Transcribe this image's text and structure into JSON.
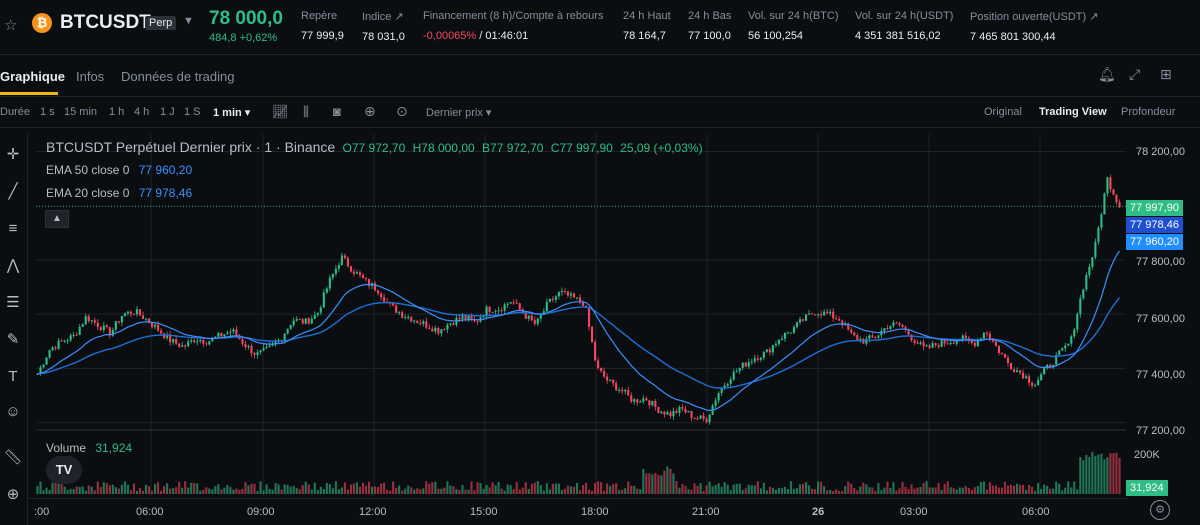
{
  "ticker": {
    "symbol": "BTCUSDT",
    "badge": "Perp",
    "coin_letter": "₿",
    "price": "78 000,0",
    "change": "484,8 +0,62%",
    "stats": [
      {
        "label": "Repère",
        "value": "77 999,9"
      },
      {
        "label": "Indice ↗",
        "value": "78 031,0"
      },
      {
        "label": "Financement (8 h)/Compte à rebours",
        "value_neg": "-0,00065%",
        "value_rest": " / 01:46:01"
      },
      {
        "label": "24 h Haut",
        "value": "78 164,7"
      },
      {
        "label": "24 h Bas",
        "value": "77 100,0"
      },
      {
        "label": "Vol. sur 24 h(BTC)",
        "value": "56 100,254"
      },
      {
        "label": "Vol. sur 24 h(USDT)",
        "value": "4 351 381 516,02"
      },
      {
        "label": "Position ouverte(USDT) ↗",
        "value": "7 465 801 300,44"
      }
    ]
  },
  "tabs": [
    "Graphique",
    "Infos",
    "Données de trading"
  ],
  "toolbar": {
    "intervals": [
      "Durée",
      "1 s",
      "15 min",
      "1 h",
      "4 h",
      "1 J",
      "1 S",
      "1 min ▾"
    ],
    "price_type": "Dernier prix ▾",
    "views": [
      "Original",
      "Trading View",
      "Profondeur"
    ]
  },
  "legend": {
    "title": "BTCUSDT Perpétuel Dernier prix · 1 · Binance",
    "ohlc": [
      {
        "k": "O",
        "v": "77 972,70"
      },
      {
        "k": "H",
        "v": "78 000,00"
      },
      {
        "k": "B",
        "v": "77 972,70"
      },
      {
        "k": "C",
        "v": "77 997,90"
      }
    ],
    "change": "25,09 (+0,03%)",
    "ema50_label": "EMA 50 close 0",
    "ema50_value": "77 960,20",
    "ema20_label": "EMA 20 close 0",
    "ema20_value": "77 978,46",
    "volume_label": "Volume",
    "volume_value": "31,924"
  },
  "price_axis": [
    "78 200,00",
    "77 800,00",
    "77 600,00",
    "77 400,00",
    "77 200,00",
    "200K"
  ],
  "price_badges": {
    "last": "77 997,90",
    "ema20": "77 978,46",
    "ema50": "77 960,20",
    "volume": "31,924"
  },
  "time_axis": [
    ":00",
    "06:00",
    "09:00",
    "12:00",
    "15:00",
    "18:00",
    "21:00",
    "26",
    "03:00",
    "06:00"
  ],
  "colors": {
    "up": "#2ebd85",
    "down": "#f6465d",
    "ema20": "#3c8fff",
    "ema50": "#1f6fd6",
    "accent": "#f0b90b"
  },
  "chart_data": {
    "type": "candlestick",
    "price_range": [
      77180,
      78250
    ],
    "close_series": [
      77380,
      77470,
      77500,
      77520,
      77590,
      77560,
      77530,
      77600,
      77610,
      77580,
      77540,
      77500,
      77480,
      77510,
      77500,
      77520,
      77540,
      77490,
      77450,
      77470,
      77510,
      77580,
      77570,
      77600,
      77720,
      77810,
      77760,
      77720,
      77690,
      77630,
      77600,
      77580,
      77560,
      77540,
      77570,
      77590,
      77570,
      77620,
      77620,
      77650,
      77600,
      77560,
      77640,
      77680,
      77660,
      77640,
      77400,
      77350,
      77320,
      77280,
      77290,
      77250,
      77230,
      77250,
      77220,
      77210,
      77310,
      77370,
      77410,
      77440,
      77460,
      77510,
      77540,
      77580,
      77610,
      77600,
      77580,
      77520,
      77500,
      77520,
      77560,
      77560,
      77510,
      77470,
      77490,
      77500,
      77510,
      77490,
      77540,
      77470,
      77410,
      77380,
      77340,
      77400,
      77450,
      77500,
      77700,
      77850,
      78100,
      77998
    ]
  }
}
